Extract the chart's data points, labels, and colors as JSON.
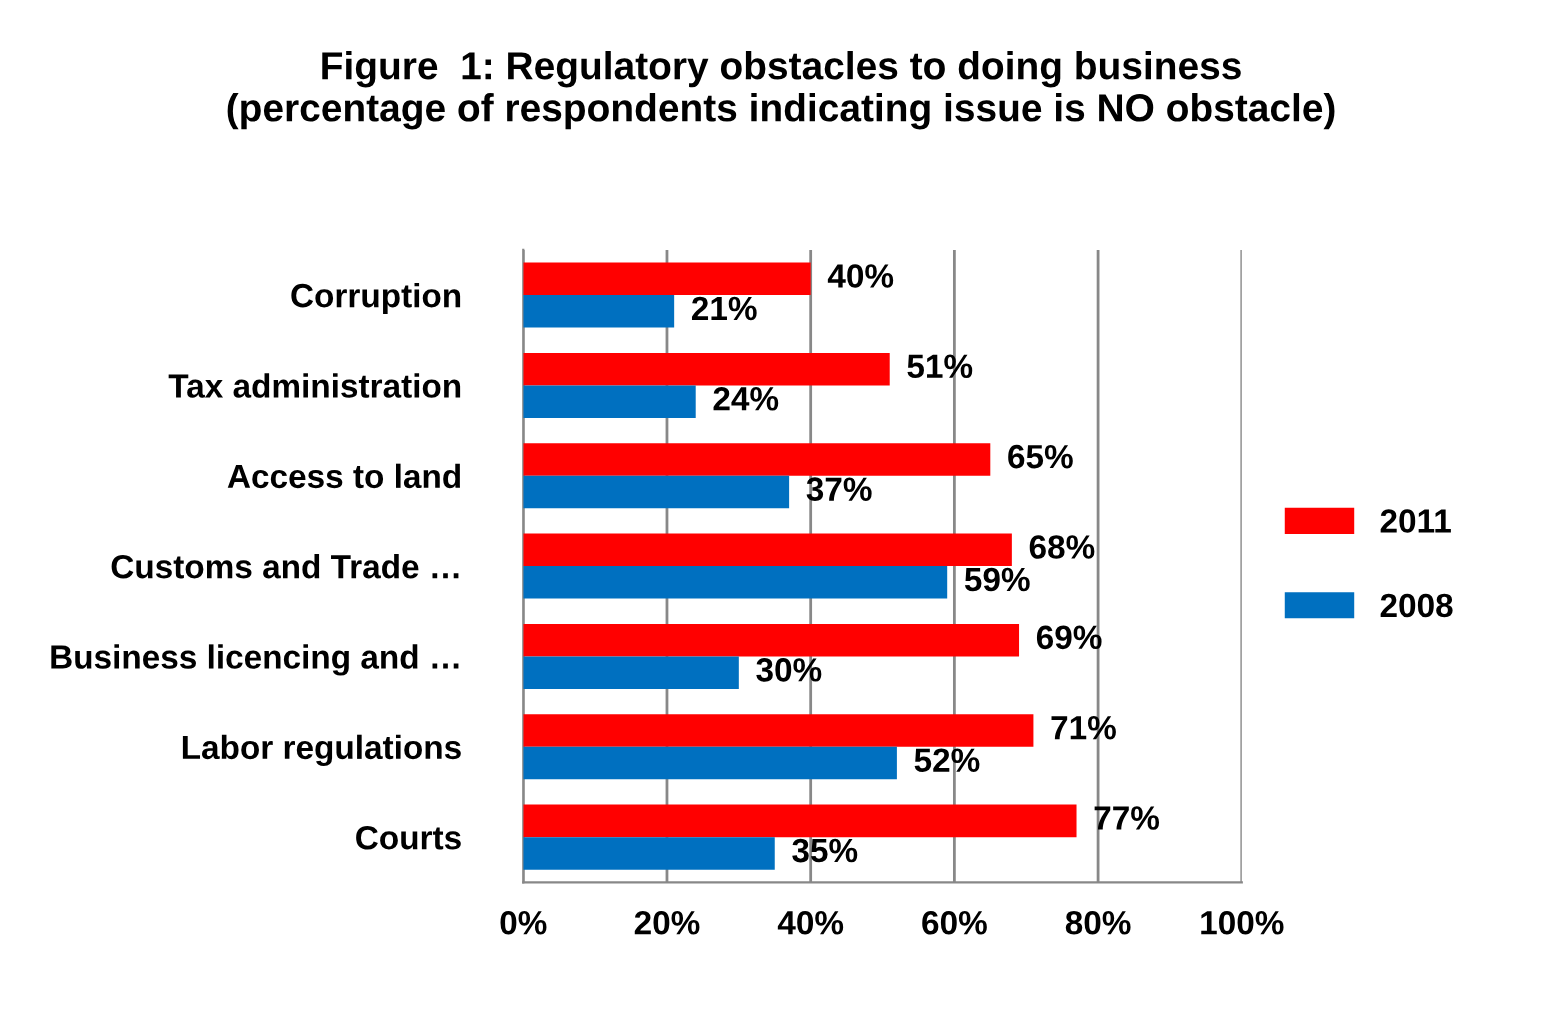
{
  "chart_data": {
    "type": "bar",
    "orientation": "horizontal",
    "title": "Figure  1: Regulatory obstacles to doing business\n(percentage of respondents indicating issue is NO obstacle)",
    "categories": [
      "Corruption",
      "Tax administration",
      "Access to land",
      "Customs and Trade …",
      "Business licencing and …",
      "Labor regulations",
      "Courts"
    ],
    "series": [
      {
        "name": "2011",
        "color": "#ff0000",
        "values": [
          40,
          51,
          65,
          68,
          69,
          71,
          77
        ],
        "value_labels": [
          "40%",
          "51%",
          "65%",
          "68%",
          "69%",
          "71%",
          "77%"
        ]
      },
      {
        "name": "2008",
        "color": "#0070c0",
        "values": [
          21,
          24,
          37,
          59,
          30,
          52,
          35
        ],
        "value_labels": [
          "21%",
          "24%",
          "37%",
          "59%",
          "30%",
          "52%",
          "35%"
        ]
      }
    ],
    "xlim": [
      0,
      100
    ],
    "xticks": [
      {
        "value": 0,
        "label": "0%"
      },
      {
        "value": 20,
        "label": "20%"
      },
      {
        "value": 40,
        "label": "40%"
      },
      {
        "value": 60,
        "label": "60%"
      },
      {
        "value": 80,
        "label": "80%"
      },
      {
        "value": 100,
        "label": "100%"
      }
    ],
    "grid": "x",
    "legend": "right"
  }
}
